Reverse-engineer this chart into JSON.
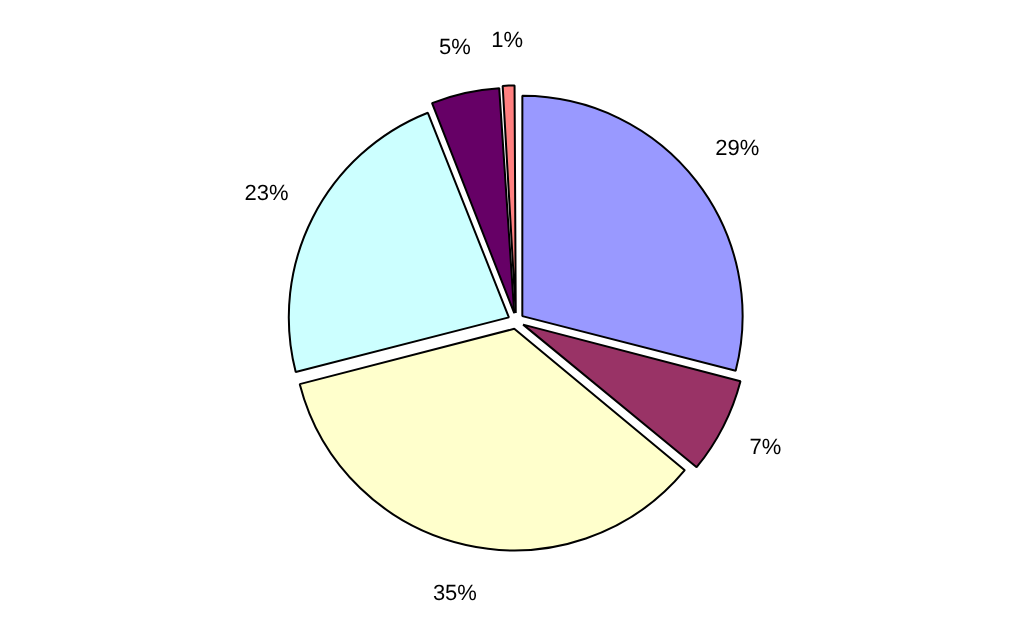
{
  "chart_data": {
    "type": "pie",
    "categories": [
      null,
      null,
      null,
      null,
      null,
      null
    ],
    "values": [
      29,
      7,
      35,
      23,
      5,
      1
    ],
    "colors": [
      "#9999ff",
      "#993366",
      "#ffffcc",
      "#ccffff",
      "#660066",
      "#ff8080"
    ],
    "value_labels": [
      "29%",
      "7%",
      "35%",
      "23%",
      "5%",
      "1%"
    ],
    "legend": false
  }
}
